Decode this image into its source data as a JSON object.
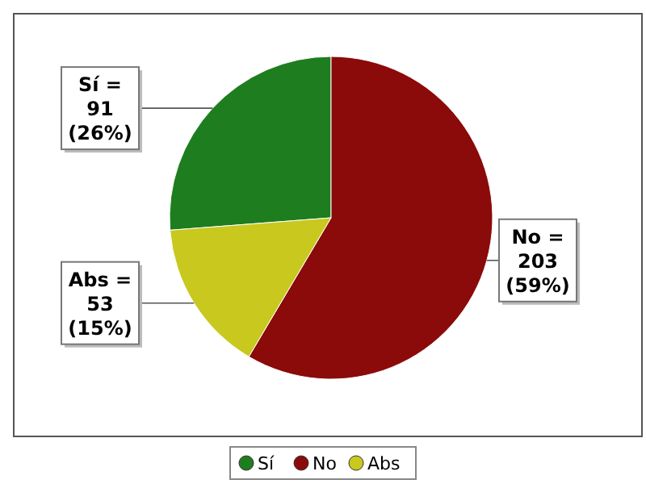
{
  "chart_data": {
    "type": "pie",
    "categories": [
      "Sí",
      "No",
      "Abs"
    ],
    "values": [
      91,
      203,
      53
    ],
    "colors": [
      "#1e7d1e",
      "#8b0a0a",
      "#c8c81e"
    ],
    "value_labels": [
      "Sí = 91 (26%)",
      "No = 203 (59%)",
      "Abs = 53 (15%)"
    ],
    "legend": "bottom"
  }
}
